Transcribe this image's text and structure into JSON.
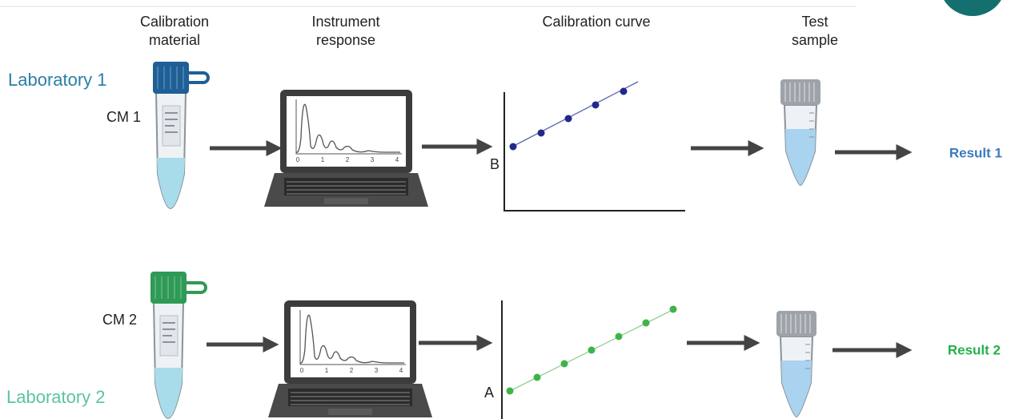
{
  "headers": [
    [
      "Calibration",
      "material"
    ],
    [
      "Instrument",
      "response"
    ],
    [
      "Calibration curve"
    ],
    [
      "Test",
      "sample"
    ]
  ],
  "rows": [
    {
      "lab": "Laboratory 1",
      "material": "CM 1",
      "curve_label": "B",
      "result": "Result 1"
    },
    {
      "lab": "Laboratory 2",
      "material": "CM 2",
      "curve_label": "A",
      "result": "Result 2"
    }
  ],
  "screen_ticks": [
    "0",
    "1",
    "2",
    "3",
    "4"
  ]
}
